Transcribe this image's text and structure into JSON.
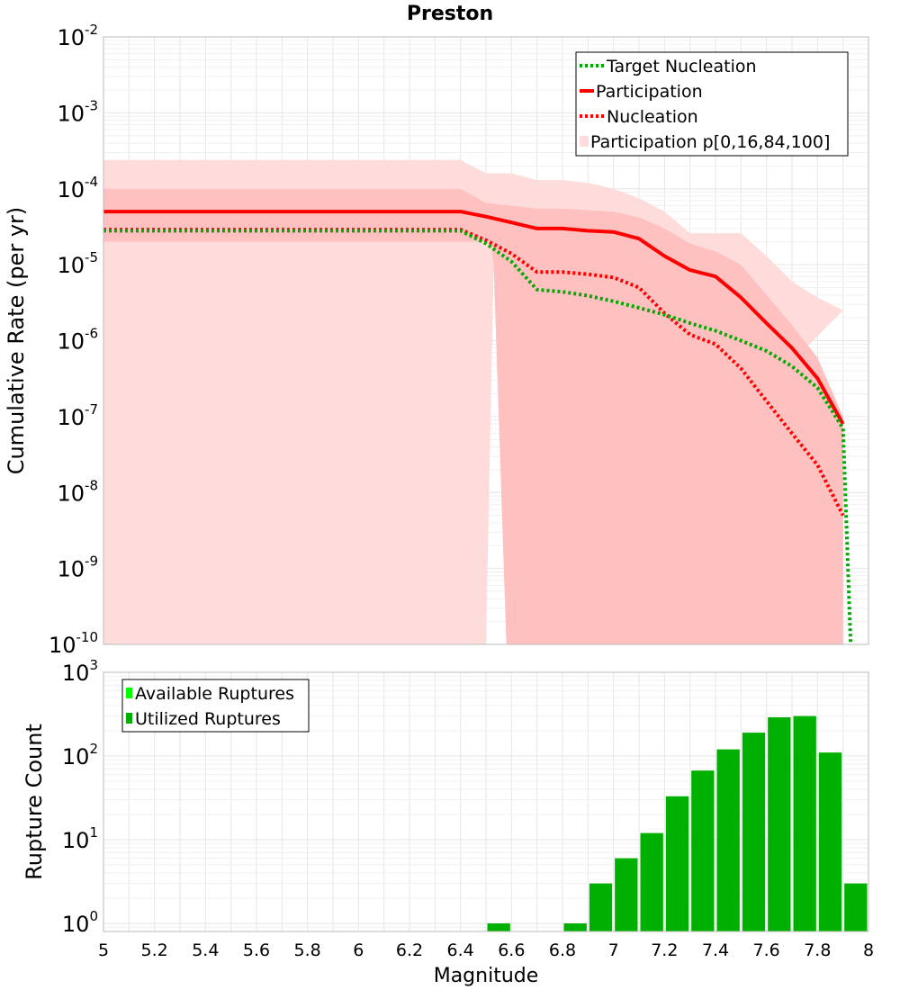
{
  "chart_data": [
    {
      "type": "line",
      "title": "Preston",
      "xlabel": "",
      "ylabel": "Cumulative Rate (per yr)",
      "xscale": "linear",
      "yscale": "log",
      "xlim": [
        5,
        8
      ],
      "ylim": [
        1e-10,
        0.01
      ],
      "y_tick_labels": [
        {
          "base": "10",
          "exp": "-10",
          "e": -10
        },
        {
          "base": "10",
          "exp": "-9",
          "e": -9
        },
        {
          "base": "10",
          "exp": "-8",
          "e": -8
        },
        {
          "base": "10",
          "exp": "-7",
          "e": -7
        },
        {
          "base": "10",
          "exp": "-6",
          "e": -6
        },
        {
          "base": "10",
          "exp": "-5",
          "e": -5
        },
        {
          "base": "10",
          "exp": "-4",
          "e": -4
        },
        {
          "base": "10",
          "exp": "-3",
          "e": -3
        },
        {
          "base": "10",
          "exp": "-2",
          "e": -2
        }
      ],
      "grid": true,
      "legend_position": "top-right",
      "legend": [
        "Target Nucleation",
        "Participation",
        "Nucleation",
        "Participation p[0,16,84,100]"
      ],
      "bands": {
        "name": "Participation p[0,16,84,100]",
        "outer_color": "#ffdcdc",
        "inner_color": "#ffc0c0",
        "x": [
          5.0,
          6.4,
          6.5,
          6.6,
          6.7,
          6.8,
          6.9,
          7.0,
          7.1,
          7.2,
          7.3,
          7.4,
          7.5,
          7.6,
          7.7,
          7.8,
          7.9
        ],
        "p100": [
          0.00024,
          0.00024,
          0.00016,
          0.00016,
          0.00013,
          0.00013,
          0.00012,
          0.0001,
          7.5e-05,
          5e-05,
          2.6e-05,
          2.6e-05,
          2.6e-05,
          1.3e-05,
          6e-06,
          3.7e-06,
          2.5e-06
        ],
        "p84": [
          0.0001,
          0.0001,
          6.5e-05,
          6e-05,
          5.5e-05,
          5.5e-05,
          5.2e-05,
          5e-05,
          4.2e-05,
          3e-05,
          1.9e-05,
          1.5e-05,
          1e-05,
          4e-06,
          1.6e-06,
          6e-07,
          1e-07
        ],
        "p16": [
          1e-10,
          1e-10,
          1e-10,
          1e-10,
          1e-10,
          1e-10,
          1e-10,
          1e-10,
          1e-10,
          1e-10,
          1e-10,
          1e-10,
          1e-10,
          1e-10,
          1e-10,
          1e-10,
          1e-10
        ],
        "p0_x": [
          5.0,
          6.4,
          6.5,
          6.53,
          6.58,
          6.6
        ],
        "p0": [
          1e-10,
          1e-10,
          1e-10,
          1e-05,
          1e-10,
          1e-10
        ]
      },
      "series": [
        {
          "name": "Participation",
          "color": "#ff0000",
          "style": "solid",
          "x": [
            5.0,
            6.4,
            6.5,
            6.6,
            6.7,
            6.8,
            6.9,
            7.0,
            7.1,
            7.2,
            7.3,
            7.4,
            7.5,
            7.6,
            7.7,
            7.8,
            7.9
          ],
          "values": [
            5e-05,
            5e-05,
            4.3e-05,
            3.6e-05,
            3e-05,
            3e-05,
            2.8e-05,
            2.7e-05,
            2.2e-05,
            1.3e-05,
            8.5e-06,
            7e-06,
            3.7e-06,
            1.7e-06,
            8e-07,
            3.2e-07,
            8e-08
          ]
        },
        {
          "name": "Nucleation",
          "color": "#ff0000",
          "style": "dotted",
          "x": [
            5.0,
            6.4,
            6.5,
            6.6,
            6.7,
            6.8,
            6.9,
            7.0,
            7.1,
            7.2,
            7.3,
            7.4,
            7.5,
            7.6,
            7.7,
            7.8,
            7.9
          ],
          "values": [
            2.9e-05,
            2.9e-05,
            2.1e-05,
            1.4e-05,
            8e-06,
            8e-06,
            7.5e-06,
            6.8e-06,
            5e-06,
            2.3e-06,
            1.2e-06,
            9e-07,
            4.3e-07,
            1.6e-07,
            6e-08,
            2.3e-08,
            5e-09
          ]
        },
        {
          "name": "Target Nucleation",
          "color": "#00aa00",
          "style": "dotted",
          "x": [
            5.0,
            6.4,
            6.5,
            6.6,
            6.7,
            6.8,
            6.9,
            7.0,
            7.1,
            7.2,
            7.3,
            7.4,
            7.5,
            7.6,
            7.7,
            7.8,
            7.9,
            7.93
          ],
          "values": [
            2.8e-05,
            2.8e-05,
            1.9e-05,
            1.1e-05,
            4.7e-06,
            4.4e-06,
            3.9e-06,
            3.3e-06,
            2.7e-06,
            2.2e-06,
            1.7e-06,
            1.35e-06,
            1e-06,
            7.3e-07,
            4.6e-07,
            2.4e-07,
            7e-08,
            1e-10
          ]
        }
      ]
    },
    {
      "type": "bar",
      "title": "",
      "xlabel": "Magnitude",
      "ylabel": "Rupture Count",
      "yscale": "log",
      "xlim": [
        5,
        8
      ],
      "ylim": [
        0.8,
        1000
      ],
      "x_ticks": [
        "5",
        "5.2",
        "5.4",
        "5.6",
        "5.8",
        "6",
        "6.2",
        "6.4",
        "6.6",
        "6.8",
        "7",
        "7.2",
        "7.4",
        "7.6",
        "7.8",
        "8"
      ],
      "y_tick_labels": [
        {
          "base": "10",
          "exp": "0",
          "e": 0
        },
        {
          "base": "10",
          "exp": "1",
          "e": 1
        },
        {
          "base": "10",
          "exp": "2",
          "e": 2
        },
        {
          "base": "10",
          "exp": "3",
          "e": 3
        }
      ],
      "grid": true,
      "legend_position": "top-left",
      "legend": [
        "Available Ruptures",
        "Utilized Ruptures"
      ],
      "bar_width": 0.1,
      "series": [
        {
          "name": "Utilized Ruptures",
          "color": "#00b000",
          "x": [
            6.55,
            6.85,
            6.95,
            7.05,
            7.15,
            7.25,
            7.35,
            7.45,
            7.55,
            7.65,
            7.75,
            7.85,
            7.95
          ],
          "values": [
            1,
            1,
            3,
            6,
            12,
            33,
            67,
            120,
            190,
            290,
            300,
            110,
            3
          ]
        },
        {
          "name": "Available Ruptures",
          "color": "#00ff00",
          "x": [],
          "values": []
        }
      ]
    }
  ]
}
